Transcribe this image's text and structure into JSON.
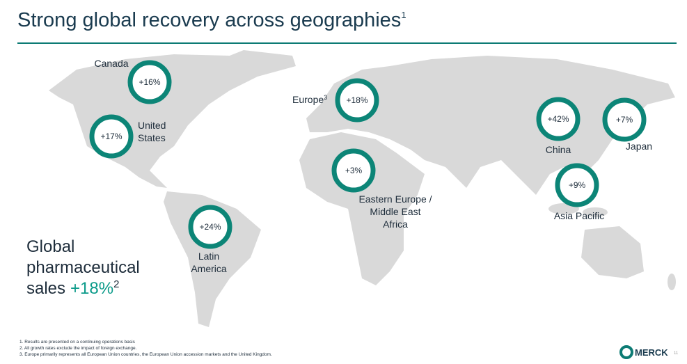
{
  "header": {
    "title": "Strong global recovery across geographies",
    "title_sup": "1"
  },
  "regions": [
    {
      "label_lines": [
        "Canada"
      ],
      "growth": "+16%"
    },
    {
      "label_lines": [
        "United",
        "States"
      ],
      "growth": "+17%"
    },
    {
      "label_lines": [
        "Latin",
        "America"
      ],
      "growth": "+24%"
    },
    {
      "label_lines": [
        "Europe"
      ],
      "label_sup": "3",
      "growth": "+18%"
    },
    {
      "label_lines": [
        "Eastern Europe /",
        "Middle East",
        "Africa"
      ],
      "growth": "+3%"
    },
    {
      "label_lines": [
        "China"
      ],
      "growth": "+42%"
    },
    {
      "label_lines": [
        "Japan"
      ],
      "growth": "+7%"
    },
    {
      "label_lines": [
        "Asia Pacific"
      ],
      "growth": "+9%"
    }
  ],
  "summary": {
    "lines": [
      "Global",
      "pharmaceutical"
    ],
    "last_prefix": "sales",
    "highlight": "+18%",
    "sup": "2"
  },
  "footnotes": [
    "1. Results are presented on a continuing operations basis",
    "2. All growth rates exclude the impact of foreign exchange.",
    "3. Europe primarily represents all European Union countries, the European Union accession markets and the United Kingdom."
  ],
  "footer": {
    "logo": "MERCK",
    "page": "11"
  }
}
